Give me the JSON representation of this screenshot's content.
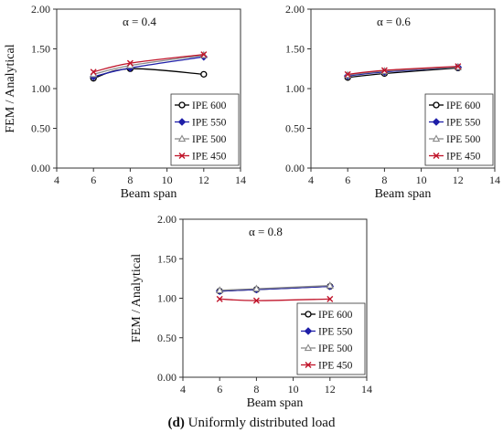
{
  "caption": {
    "tag": "(d)",
    "text": " Uniformly distributed load"
  },
  "colors": {
    "IPE 600": "#000000",
    "IPE 550": "#1f1fa8",
    "IPE 500": "#8a8a8a",
    "IPE 450": "#c0142a"
  },
  "chart_data": [
    {
      "type": "line",
      "annotation": "α = 0.4",
      "xlabel": "Beam span",
      "ylabel": "FEM / Analytical",
      "xlim": [
        4,
        14
      ],
      "ylim": [
        0,
        2
      ],
      "xticks": [
        "4",
        "6",
        "8",
        "10",
        "12",
        "14"
      ],
      "yticks": [
        "0.00",
        "0.50",
        "1.00",
        "1.50",
        "2.00"
      ],
      "legend_position": "bottom-right",
      "x": [
        6,
        8,
        12
      ],
      "series": [
        {
          "name": "IPE 600",
          "marker": "circle",
          "values": [
            1.13,
            1.25,
            1.18
          ]
        },
        {
          "name": "IPE 550",
          "marker": "diamond",
          "values": [
            1.15,
            1.26,
            1.4
          ]
        },
        {
          "name": "IPE 500",
          "marker": "triangle",
          "values": [
            1.18,
            1.29,
            1.42
          ]
        },
        {
          "name": "IPE 450",
          "marker": "x",
          "values": [
            1.21,
            1.32,
            1.43
          ]
        }
      ]
    },
    {
      "type": "line",
      "annotation": "α = 0.6",
      "xlabel": "Beam span",
      "ylabel": "",
      "xlim": [
        4,
        14
      ],
      "ylim": [
        0,
        2
      ],
      "xticks": [
        "4",
        "6",
        "8",
        "10",
        "12",
        "14"
      ],
      "yticks": [
        "0.00",
        "0.50",
        "1.00",
        "1.50",
        "2.00"
      ],
      "legend_position": "bottom-right",
      "x": [
        6,
        8,
        12
      ],
      "series": [
        {
          "name": "IPE 600",
          "marker": "circle",
          "values": [
            1.14,
            1.19,
            1.26
          ]
        },
        {
          "name": "IPE 550",
          "marker": "diamond",
          "values": [
            1.16,
            1.21,
            1.27
          ]
        },
        {
          "name": "IPE 500",
          "marker": "triangle",
          "values": [
            1.17,
            1.22,
            1.27
          ]
        },
        {
          "name": "IPE 450",
          "marker": "x",
          "values": [
            1.18,
            1.23,
            1.28
          ]
        }
      ]
    },
    {
      "type": "line",
      "annotation": "α = 0.8",
      "xlabel": "Beam span",
      "ylabel": "FEM / Analytical",
      "xlim": [
        4,
        14
      ],
      "ylim": [
        0,
        2
      ],
      "xticks": [
        "4",
        "6",
        "8",
        "10",
        "12",
        "14"
      ],
      "yticks": [
        "0.00",
        "0.50",
        "1.00",
        "1.50",
        "2.00"
      ],
      "legend_position": "bottom-right",
      "x": [
        6,
        8,
        12
      ],
      "series": [
        {
          "name": "IPE 600",
          "marker": "circle",
          "values": [
            1.09,
            1.11,
            1.15
          ]
        },
        {
          "name": "IPE 550",
          "marker": "diamond",
          "values": [
            1.09,
            1.11,
            1.15
          ]
        },
        {
          "name": "IPE 500",
          "marker": "triangle",
          "values": [
            1.1,
            1.12,
            1.16
          ]
        },
        {
          "name": "IPE 450",
          "marker": "x",
          "values": [
            0.99,
            0.97,
            0.99
          ]
        }
      ]
    }
  ]
}
